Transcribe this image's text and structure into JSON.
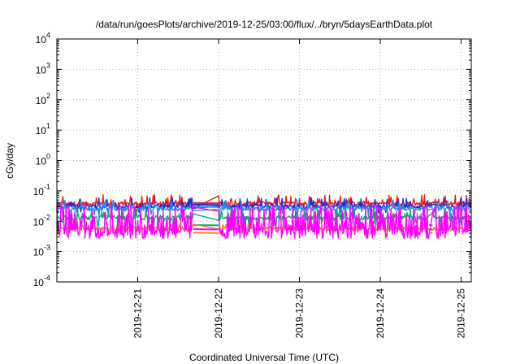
{
  "chart_data": {
    "type": "line",
    "title": "/data/run/goesPlots/archive/2019-12-25/03:00/flux/../bryn/5daysEarthData.plot",
    "xlabel": "Coordinated Universal Time (UTC)",
    "ylabel": "cGy/day",
    "y_scale": "log",
    "ylim": [
      0.0001,
      10000
    ],
    "xlim": [
      "2019-12-20T00:00",
      "2019-12-25T03:00"
    ],
    "grid": true,
    "legend": "none",
    "y_ticks": [
      {
        "value": 0.0001,
        "mantissa": "10",
        "exp": "-4"
      },
      {
        "value": 0.001,
        "mantissa": "10",
        "exp": "-3"
      },
      {
        "value": 0.01,
        "mantissa": "10",
        "exp": "-2"
      },
      {
        "value": 0.1,
        "mantissa": "10",
        "exp": "-1"
      },
      {
        "value": 1,
        "mantissa": "10",
        "exp": "0"
      },
      {
        "value": 10,
        "mantissa": "10",
        "exp": "1"
      },
      {
        "value": 100,
        "mantissa": "10",
        "exp": "2"
      },
      {
        "value": 1000,
        "mantissa": "10",
        "exp": "3"
      },
      {
        "value": 10000,
        "mantissa": "10",
        "exp": "4"
      }
    ],
    "x_ticks": [
      {
        "value": "2019-12-21T00:00",
        "label": "2019-12-21"
      },
      {
        "value": "2019-12-22T00:00",
        "label": "2019-12-22"
      },
      {
        "value": "2019-12-23T00:00",
        "label": "2019-12-23"
      },
      {
        "value": "2019-12-24T00:00",
        "label": "2019-12-24"
      },
      {
        "value": "2019-12-25T00:00",
        "label": "2019-12-25"
      }
    ],
    "data_gaps": [
      [
        "2019-12-21T16:30",
        "2019-12-22T00:00"
      ],
      [
        "2019-12-24T14:30",
        "2019-12-24T15:30"
      ]
    ],
    "series": [
      {
        "color": "#e41a1c",
        "baseline": 0.038,
        "spike_max": 0.075,
        "dip_min": 0.022,
        "gap_level": 0.04,
        "pattern": "noisy"
      },
      {
        "color": "#1a2fd8",
        "baseline": 0.031,
        "spike_max": 0.06,
        "dip_min": 0.018,
        "gap_level": 0.035,
        "pattern": "noisy"
      },
      {
        "color": "#2b8cf0",
        "baseline": 0.026,
        "spike_max": 0.05,
        "dip_min": 0.012,
        "gap_level": 0.03,
        "pattern": "noisy"
      },
      {
        "color": "#00b06e",
        "baseline": 0.013,
        "spike_max": 0.025,
        "dip_min": 0.006,
        "gap_level": 0.0075,
        "pattern": "noisy"
      },
      {
        "color": "#f08a1c",
        "baseline": 0.0058,
        "spike_max": 0.008,
        "dip_min": 0.0045,
        "gap_level": 0.0042,
        "pattern": "noisy"
      },
      {
        "color": "#ff00ff",
        "baseline": 0.0045,
        "spike_max": 0.035,
        "dip_min": 0.0028,
        "gap_level": 0.0055,
        "pattern": "spiky"
      }
    ]
  }
}
